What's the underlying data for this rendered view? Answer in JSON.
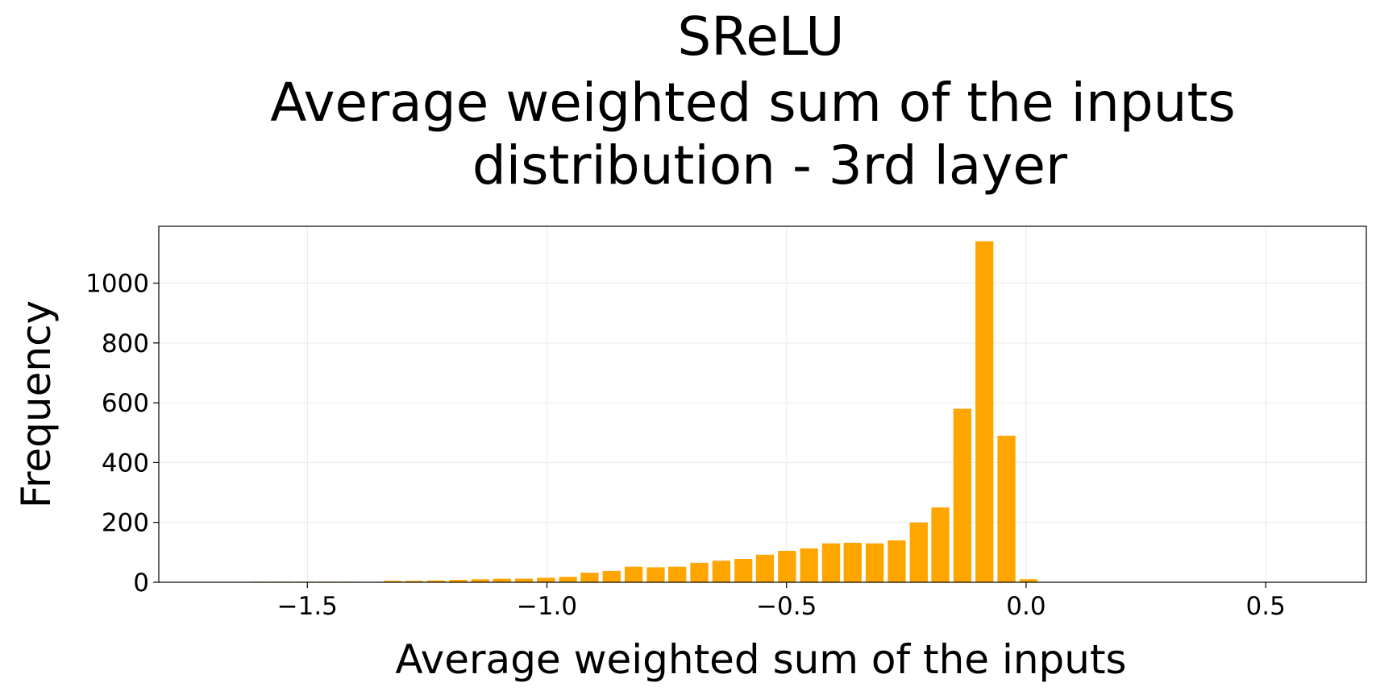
{
  "chart_data": {
    "type": "bar",
    "title_lines": [
      "SReLU",
      "Average weighted sum of the inputs",
      "distribution - 3rd layer"
    ],
    "xlabel": "Average weighted sum of the inputs",
    "ylabel": "Frequency",
    "xlim": [
      -1.81,
      0.71
    ],
    "ylim": [
      0,
      1190
    ],
    "xticks": [
      -1.5,
      -1.0,
      -0.5,
      0.0,
      0.5
    ],
    "xtick_labels": [
      "−1.5",
      "−1.0",
      "−0.5",
      "0.0",
      "0.5"
    ],
    "yticks": [
      0,
      200,
      400,
      600,
      800,
      1000
    ],
    "ytick_labels": [
      "0",
      "200",
      "400",
      "600",
      "800",
      "1000"
    ],
    "grid": true,
    "bar_color": "#FFA500",
    "bar_width": 0.0375,
    "bin_centers": [
      -1.597,
      -1.551,
      -1.505,
      -1.46,
      -1.414,
      -1.322,
      -1.277,
      -1.231,
      -1.185,
      -1.139,
      -1.094,
      -1.048,
      -1.002,
      -0.956,
      -0.911,
      -0.865,
      -0.819,
      -0.773,
      -0.728,
      -0.682,
      -0.636,
      -0.59,
      -0.545,
      -0.499,
      -0.453,
      -0.407,
      -0.362,
      -0.316,
      -0.27,
      -0.224,
      -0.179,
      -0.133,
      -0.087,
      -0.041,
      0.005,
      0.05
    ],
    "values": [
      2,
      2,
      2,
      2,
      2,
      5,
      5,
      6,
      8,
      10,
      12,
      12,
      15,
      18,
      32,
      38,
      52,
      50,
      52,
      65,
      72,
      78,
      92,
      105,
      113,
      130,
      132,
      130,
      140,
      200,
      250,
      580,
      1140,
      490,
      10,
      0
    ]
  }
}
